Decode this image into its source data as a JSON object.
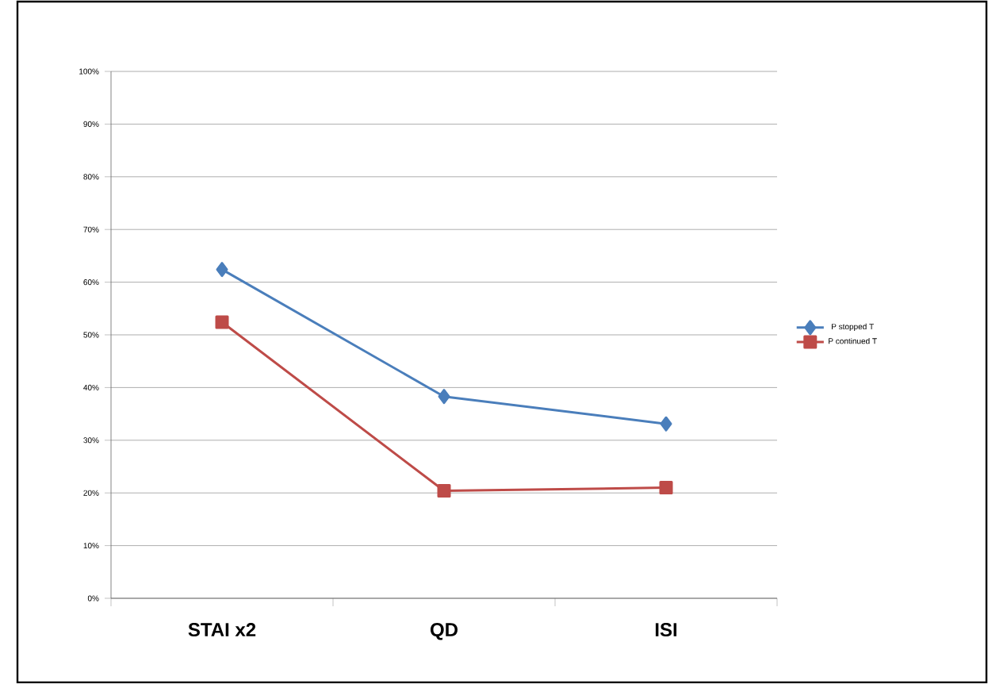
{
  "chart_data": {
    "type": "line",
    "categories": [
      "STAI x2",
      "QD",
      "ISI"
    ],
    "series": [
      {
        "name": "P stopped T",
        "color": "#4a7ebb",
        "values": [
          62.4,
          38.3,
          33.1
        ],
        "marker": "diamond"
      },
      {
        "name": "P continued T",
        "color": "#be4b48",
        "values": [
          52.4,
          20.4,
          21.0
        ],
        "marker": "square"
      }
    ],
    "ylim": [
      0,
      100
    ],
    "yticks": [
      {
        "value": 0,
        "label": "0%"
      },
      {
        "value": 10,
        "label": "10%"
      },
      {
        "value": 20,
        "label": "20%"
      },
      {
        "value": 30,
        "label": "30%"
      },
      {
        "value": 40,
        "label": "40%"
      },
      {
        "value": 50,
        "label": "50%"
      },
      {
        "value": 60,
        "label": "60%"
      },
      {
        "value": 70,
        "label": "70%"
      },
      {
        "value": 80,
        "label": "80%"
      },
      {
        "value": 90,
        "label": "90%"
      },
      {
        "value": 100,
        "label": "100%"
      }
    ],
    "grid": "y",
    "legend": "right"
  }
}
